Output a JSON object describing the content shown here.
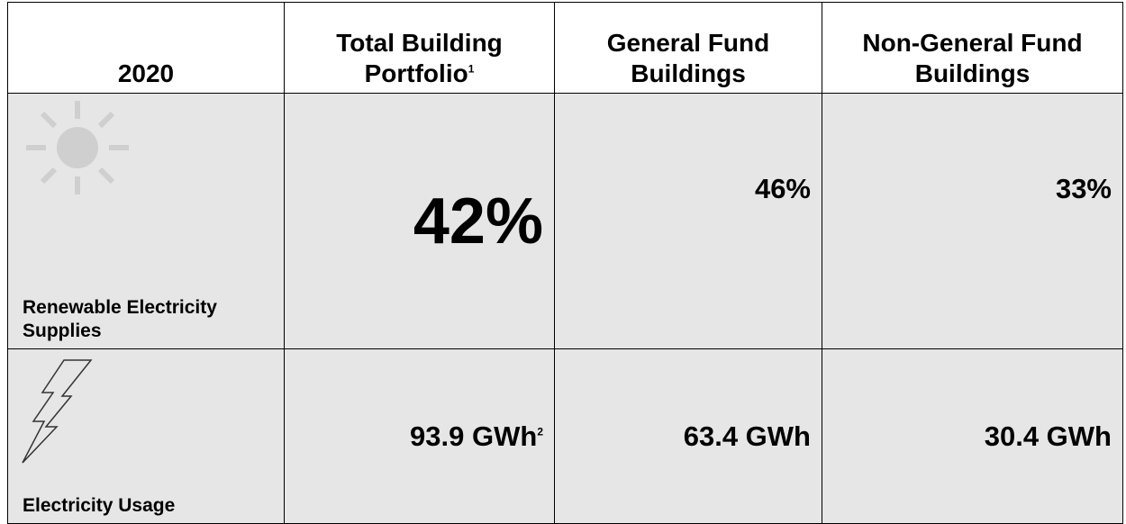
{
  "table": {
    "header": [
      {
        "text": "2020"
      },
      {
        "text": "Total Building Portfolio",
        "sup": "1"
      },
      {
        "text": "General Fund Buildings"
      },
      {
        "text": "Non-General Fund Buildings"
      }
    ],
    "rows": [
      [
        {
          "text": "Renewable Electricity Supplies"
        },
        {
          "text": "42%"
        },
        {
          "text": "46%"
        },
        {
          "text": "33%"
        }
      ],
      [
        {
          "text": "Electricity Usage"
        },
        {
          "text": "93.9 GWh",
          "sup": "2"
        },
        {
          "text": "63.4 GWh"
        },
        {
          "text": "30.4 GWh"
        }
      ]
    ]
  }
}
